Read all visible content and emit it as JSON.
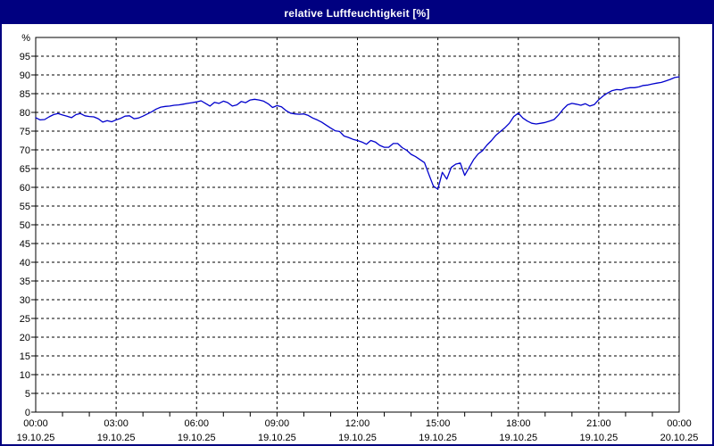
{
  "window": {
    "title": "relative Luftfeuchtigkeit [%]"
  },
  "colors": {
    "title_bar": "#000080",
    "window_border": "#000080",
    "background": "#ffffff",
    "title_text": "#ffffff",
    "grid": "#000000",
    "axis": "#000000",
    "text": "#000000",
    "line": "#0000cc"
  },
  "chart_data": {
    "type": "line",
    "title": "relative Luftfeuchtigkeit [%]",
    "ylabel": "%",
    "xlabel": "",
    "ylim": [
      0,
      100
    ],
    "y_tick_step": 5,
    "y_tick_labels": [
      "0",
      "5",
      "10",
      "15",
      "20",
      "25",
      "30",
      "35",
      "40",
      "45",
      "50",
      "55",
      "60",
      "65",
      "70",
      "75",
      "80",
      "85",
      "90",
      "95"
    ],
    "y_unit_label": "%",
    "grid": "dashed",
    "legend": "none",
    "x_range_minutes": [
      0,
      1440
    ],
    "x_minor_tick_minutes": 60,
    "x_major_ticks": [
      {
        "minutes": 0,
        "time": "00:00",
        "date": "19.10.25"
      },
      {
        "minutes": 180,
        "time": "03:00",
        "date": "19.10.25"
      },
      {
        "minutes": 360,
        "time": "06:00",
        "date": "19.10.25"
      },
      {
        "minutes": 540,
        "time": "09:00",
        "date": "19.10.25"
      },
      {
        "minutes": 720,
        "time": "12:00",
        "date": "19.10.25"
      },
      {
        "minutes": 900,
        "time": "15:00",
        "date": "19.10.25"
      },
      {
        "minutes": 1080,
        "time": "18:00",
        "date": "19.10.25"
      },
      {
        "minutes": 1260,
        "time": "21:00",
        "date": "19.10.25"
      },
      {
        "minutes": 1440,
        "time": "00:00",
        "date": "20.10.25"
      }
    ],
    "series": [
      {
        "name": "relative Luftfeuchtigkeit",
        "color": "#0000cc",
        "sample_interval_minutes": 10,
        "values": [
          78.6,
          78.0,
          78.1,
          78.8,
          79.4,
          79.7,
          79.3,
          79.0,
          78.6,
          79.4,
          79.7,
          79.1,
          78.9,
          78.8,
          78.3,
          77.4,
          77.8,
          77.5,
          78.0,
          78.4,
          79.0,
          79.1,
          78.3,
          78.5,
          79.0,
          79.6,
          80.2,
          80.9,
          81.4,
          81.6,
          81.7,
          81.9,
          82.0,
          82.2,
          82.4,
          82.6,
          82.8,
          83.1,
          82.4,
          81.7,
          82.7,
          82.4,
          83.0,
          82.6,
          81.7,
          82.0,
          82.9,
          82.6,
          83.3,
          83.5,
          83.3,
          83.0,
          82.3,
          81.3,
          81.8,
          81.5,
          80.5,
          79.8,
          79.6,
          79.5,
          79.6,
          79.2,
          78.5,
          78.0,
          77.4,
          76.6,
          75.8,
          75.1,
          74.9,
          73.7,
          73.3,
          72.8,
          72.5,
          72.1,
          71.5,
          72.5,
          72.1,
          71.2,
          70.7,
          70.7,
          71.7,
          71.7,
          70.6,
          69.9,
          68.8,
          68.2,
          67.4,
          66.6,
          63.4,
          60.3,
          59.5,
          64.0,
          62.2,
          65.3,
          66.2,
          66.5,
          63.2,
          65.3,
          67.4,
          68.9,
          69.8,
          71.3,
          72.5,
          73.9,
          74.9,
          75.9,
          77.1,
          78.9,
          79.8,
          78.5,
          77.7,
          77.1,
          76.9,
          77.1,
          77.3,
          77.7,
          78.1,
          79.3,
          80.8,
          82.0,
          82.4,
          82.2,
          81.9,
          82.3,
          81.7,
          82.1,
          83.4,
          84.4,
          85.2,
          85.8,
          86.1,
          86.0,
          86.4,
          86.6,
          86.6,
          86.8,
          87.2,
          87.3,
          87.6,
          87.8,
          88.0,
          88.4,
          88.8,
          89.3,
          89.5
        ]
      }
    ]
  }
}
